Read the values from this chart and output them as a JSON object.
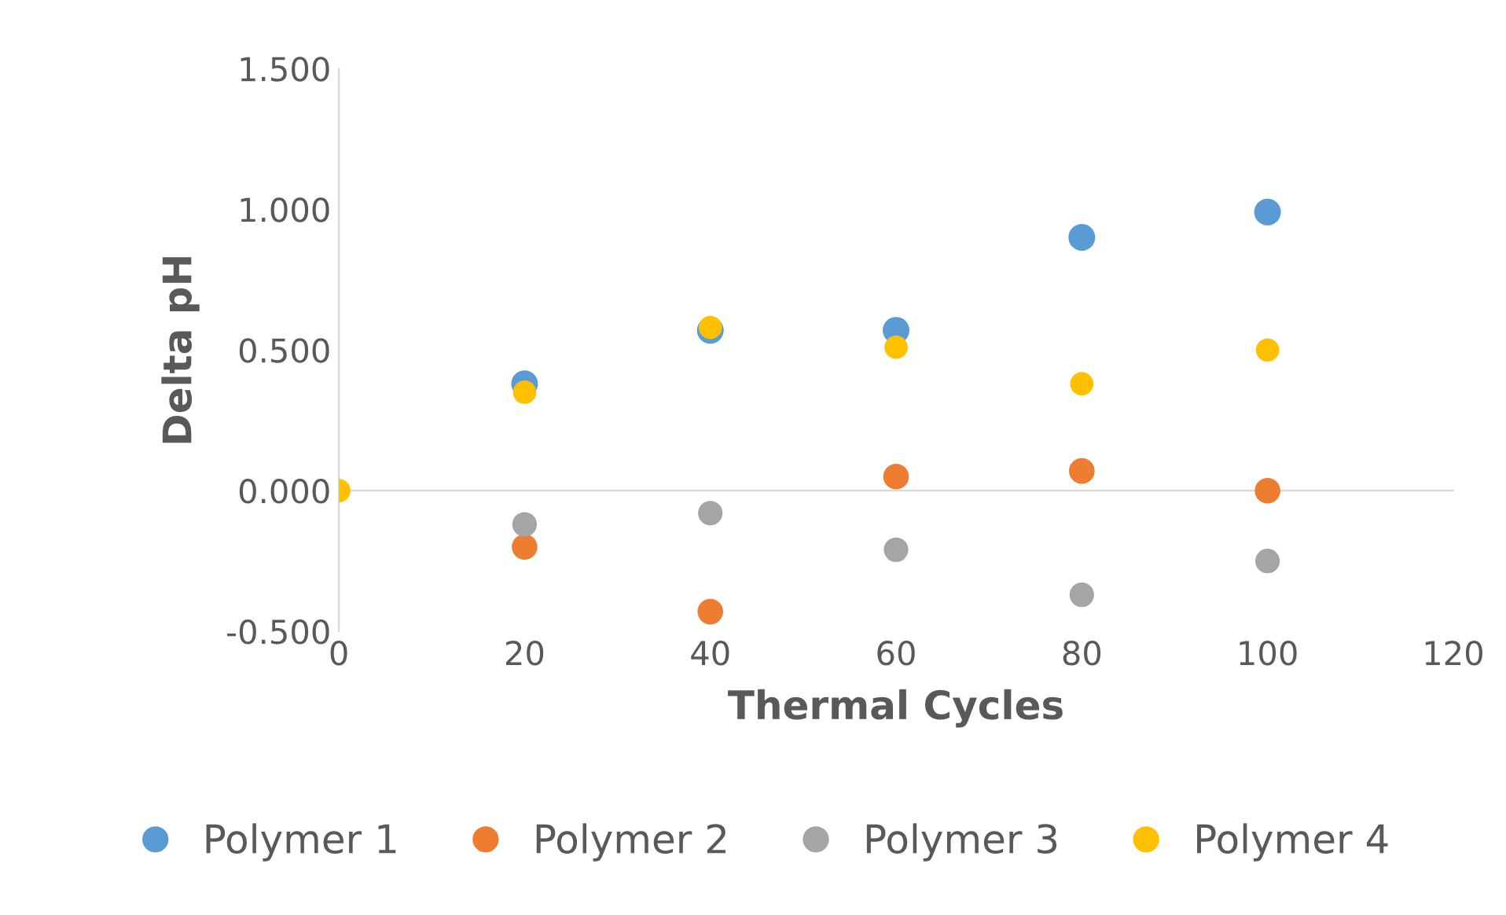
{
  "chart_data": {
    "type": "scatter",
    "xlabel": "Thermal Cycles",
    "ylabel": "Delta pH",
    "x": [
      0,
      20,
      40,
      60,
      80,
      100
    ],
    "series": [
      {
        "name": "Polymer 1",
        "color": "#5b9bd5",
        "values": [
          null,
          0.38,
          0.57,
          0.57,
          0.9,
          0.99
        ]
      },
      {
        "name": "Polymer 2",
        "color": "#ed7d31",
        "values": [
          null,
          -0.2,
          -0.43,
          0.05,
          0.07,
          0
        ]
      },
      {
        "name": "Polymer 3",
        "color": "#a5a5a5",
        "values": [
          null,
          -0.12,
          -0.08,
          -0.21,
          -0.37,
          -0.25
        ]
      },
      {
        "name": "Polymer 4",
        "color": "#ffc000",
        "values": [
          0,
          0.35,
          0.58,
          0.51,
          0.38,
          0.5
        ]
      }
    ],
    "xlim": [
      0,
      120
    ],
    "xticks": [
      0,
      20,
      40,
      60,
      80,
      100,
      120
    ],
    "ylim": [
      -0.5,
      1.5
    ],
    "yticks": [
      {
        "value": -0.5,
        "label": "-0.500"
      },
      {
        "value": 0,
        "label": "0.000"
      },
      {
        "value": 0.5,
        "label": "0.500"
      },
      {
        "value": 1,
        "label": "1.000"
      },
      {
        "value": 1.5,
        "label": "1.500"
      }
    ],
    "marker": "circle",
    "legend": "bottom"
  }
}
